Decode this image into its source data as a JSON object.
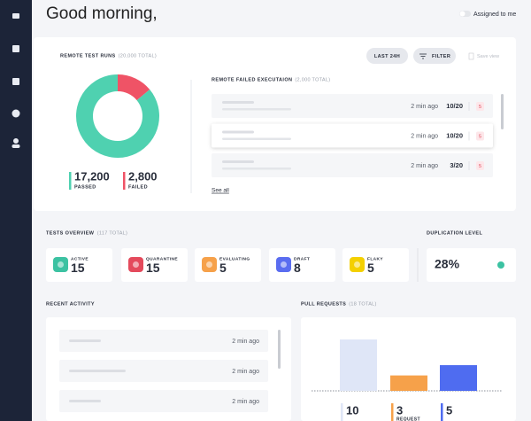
{
  "greeting": "Good morning,",
  "toggle_label": "Assigned to me",
  "test_runs": {
    "title": "REMOTE TEST RUNS",
    "total": "(20,000 TOTAL)",
    "buttons": [
      "LAST 24H",
      "FILTER",
      "Save view"
    ],
    "donut": {
      "values": [
        17200,
        2800
      ],
      "value_labels": [
        "17,200",
        "2,800"
      ],
      "labels": [
        "PASSED",
        "FAILED"
      ],
      "colors": [
        "#4fd1b0",
        "#ef5366"
      ]
    },
    "failed": {
      "title": "REMOTE FAILED EXECUTAION",
      "total": "(2,000 TOTAL)",
      "rows": [
        {
          "time": "2 min ago",
          "ratio": "10/20",
          "count": "5"
        },
        {
          "time": "2 min ago",
          "ratio": "10/20",
          "count": "5"
        },
        {
          "time": "2 min ago",
          "ratio": "3/20",
          "count": "5"
        }
      ],
      "link": "See all"
    }
  },
  "tests_overview": {
    "title": "TESTS OVERVIEW",
    "total": "(117 TOTAL)",
    "cards": [
      {
        "label": "ACTIVE",
        "value": 15,
        "color": "#3cc2a2"
      },
      {
        "label": "QUARANTINE",
        "value": 15,
        "color": "#e44a5c"
      },
      {
        "label": "EVALUATING",
        "value": 5,
        "color": "#f6a14a"
      },
      {
        "label": "DRAFT",
        "value": 8,
        "color": "#5a6df0"
      },
      {
        "label": "FLAKY",
        "value": 5,
        "color": "#f4d000"
      }
    ]
  },
  "duplication": {
    "title": "DUPLICATION LEVEL",
    "value": "28%"
  },
  "recent_activity": {
    "title": "RECENT ACTIVITY",
    "rows": [
      "2 min ago",
      "2 min ago",
      "2 min ago"
    ]
  },
  "pull_requests": {
    "title": "PULL REQUESTS",
    "total": "(18 TOTAL)",
    "values": [
      10,
      3,
      5
    ],
    "labels": [
      null,
      "REQUEST",
      null
    ],
    "colors": [
      "#dfe6f7",
      "#f6a14a",
      "#4f6cf0"
    ]
  }
}
